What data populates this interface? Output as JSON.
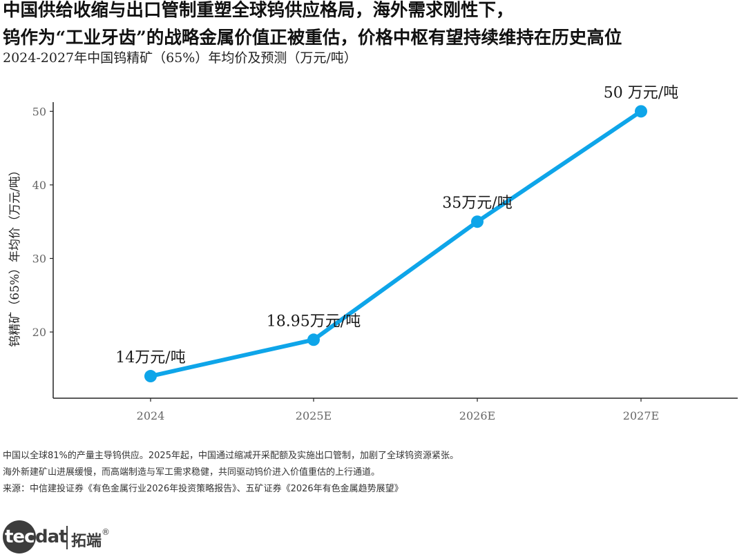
{
  "header": {
    "title_line1": "中国供给收缩与出口管制重塑全球钨供应格局，海外需求刚性下，",
    "title_line2": "钨作为“工业牙齿”的战略金属价值正被重估，价格中枢有望持续维持在历史高位",
    "subtitle": "2024-2027年中国钨精矿（65%）年均价及预测（万元/吨）"
  },
  "chart_data": {
    "type": "line",
    "categories": [
      "2024",
      "2025E",
      "2026E",
      "2027E"
    ],
    "series": [
      {
        "values": [
          14,
          18.95,
          35,
          50
        ],
        "color": "#0ea5e9"
      }
    ],
    "data_labels": [
      "14万元/吨",
      "18.95万元/吨",
      "35万元/吨",
      "50 万元/吨"
    ],
    "ylabel": "钨精矿（65%）年均价（万元/吨）",
    "xlabel": "",
    "yticks": [
      20,
      30,
      40,
      50
    ],
    "ylim": [
      11,
      52
    ],
    "grid": false,
    "legend": "none"
  },
  "notes": {
    "line1": "中国以全球81%的产量主导钨供应。2025年起，中国通过缩减开采配额及实施出口管制，加剧了全球钨资源紧张。",
    "line2": "海外新建矿山进展缓慢，而高端制造与军工需求稳健，共同驱动钨价进入价值重估的上行通道。",
    "source": "来源：中信建投证券《有色金属行业2026年投资策略报告》、五矿证券《2026年有色金属趋势展望》"
  },
  "logo": {
    "text_tec": "tec",
    "text_dat": "dat",
    "text_cn": "拓端",
    "reg": "®"
  }
}
